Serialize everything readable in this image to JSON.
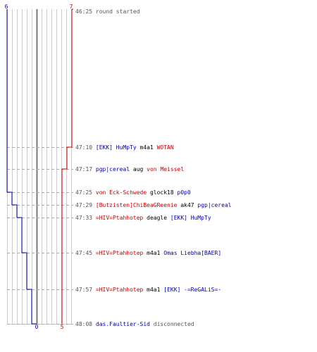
{
  "columns": [
    {
      "label": "6",
      "color": "#0000bb"
    },
    {
      "label": "7",
      "color": "#dd0000"
    }
  ],
  "bottom_labels": [
    {
      "label": "0",
      "color": "#0000bb"
    },
    {
      "label": "5",
      "color": "#dd0000"
    }
  ],
  "colors": {
    "team_blue": "#0000aa",
    "team_red": "#cc0000",
    "neutral": "#000000",
    "time": "#555555",
    "grid": "#cccccc",
    "center_line": "#777777",
    "dashed": "#aaaaaa"
  },
  "events": [
    {
      "time": "46:25",
      "parts": [
        {
          "text": " round started",
          "c": "time"
        }
      ]
    },
    {
      "time": "47:10",
      "parts": [
        {
          "text": "[EKK] HuMpTy",
          "c": "blue"
        },
        {
          "text": " m4a1 ",
          "c": "neutral"
        },
        {
          "text": "WOTAN",
          "c": "red"
        }
      ]
    },
    {
      "time": "47:17",
      "parts": [
        {
          "text": "pgp|cereal",
          "c": "blue"
        },
        {
          "text": " aug ",
          "c": "neutral"
        },
        {
          "text": "von Meissel",
          "c": "red"
        }
      ]
    },
    {
      "time": "47:25",
      "parts": [
        {
          "text": "von Eck-Schwede",
          "c": "red"
        },
        {
          "text": " glock18 ",
          "c": "neutral"
        },
        {
          "text": "p0p0",
          "c": "blue"
        }
      ]
    },
    {
      "time": "47:29",
      "parts": [
        {
          "text": "[Butzisten]ChiBeaGReenie",
          "c": "red"
        },
        {
          "text": " ak47 ",
          "c": "neutral"
        },
        {
          "text": "pgp|cereal",
          "c": "blue"
        }
      ]
    },
    {
      "time": "47:33",
      "parts": [
        {
          "text": "=HIV=Ptahhotep",
          "c": "red"
        },
        {
          "text": " deagle ",
          "c": "neutral"
        },
        {
          "text": "[EKK] HuMpTy",
          "c": "blue"
        }
      ]
    },
    {
      "time": "47:45",
      "parts": [
        {
          "text": "=HIV=Ptahhotep",
          "c": "red"
        },
        {
          "text": " m4a1 ",
          "c": "neutral"
        },
        {
          "text": "Omas Liebha[BAER]",
          "c": "blue"
        }
      ]
    },
    {
      "time": "47:57",
      "parts": [
        {
          "text": "=HIV=Ptahhotep",
          "c": "red"
        },
        {
          "text": " m4a1 ",
          "c": "neutral"
        },
        {
          "text": "[EKK] -=ReGALiS=-",
          "c": "blue"
        }
      ]
    },
    {
      "time": "48:08",
      "parts": [
        {
          "text": "das.Faultier-Sid",
          "c": "blue"
        },
        {
          "text": " disconnected",
          "c": "time"
        }
      ]
    }
  ],
  "alive_blue": [
    6,
    6,
    6,
    5,
    4,
    3,
    2,
    1,
    0
  ],
  "alive_red": [
    7,
    6,
    5,
    5,
    5,
    5,
    5,
    5,
    5
  ]
}
